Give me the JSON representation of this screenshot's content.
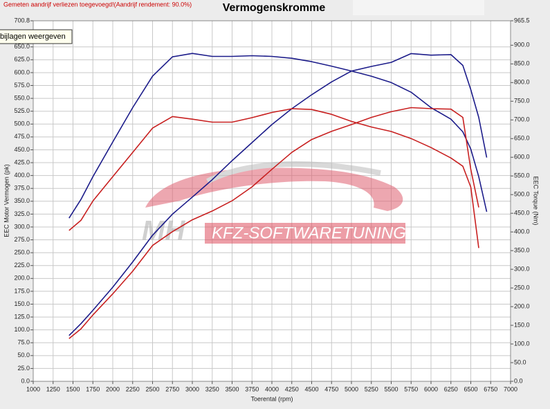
{
  "notice": "Gemeten aandrijf verliezen toegevoegd!(Aandrijf rendement: 90.0%)",
  "tooltip": "bijlagen weergeven",
  "watermark": {
    "logo": "MH",
    "text": "KFZ-SOFTWARETUNING"
  },
  "chart_data": {
    "type": "line",
    "title": "Vermogenskromme",
    "x_label": "Toerental (rpm)",
    "y_label": "EEC Motor Vermogen (pk)",
    "y2_label": "EEC Torque (Nm)",
    "grid": true,
    "xlim": [
      1000,
      7000
    ],
    "xticks": [
      1000,
      1250,
      1500,
      1750,
      2000,
      2250,
      2500,
      2750,
      3000,
      3250,
      3500,
      3750,
      4000,
      4250,
      4500,
      4750,
      5000,
      5250,
      5500,
      5750,
      6000,
      6250,
      6500,
      6750,
      7000
    ],
    "ylim": [
      0,
      700.8
    ],
    "yticks": [
      {
        "value": 0,
        "label": "0.0"
      },
      {
        "value": 25,
        "label": "25.0"
      },
      {
        "value": 50,
        "label": "50.0"
      },
      {
        "value": 75,
        "label": "75.0"
      },
      {
        "value": 100,
        "label": "100.0"
      },
      {
        "value": 125,
        "label": "125.0"
      },
      {
        "value": 150,
        "label": "150.0"
      },
      {
        "value": 175,
        "label": "175.0"
      },
      {
        "value": 200,
        "label": "200.0"
      },
      {
        "value": 225,
        "label": "225.0"
      },
      {
        "value": 250,
        "label": "250.0"
      },
      {
        "value": 275,
        "label": "275.0"
      },
      {
        "value": 300,
        "label": "300.0"
      },
      {
        "value": 325,
        "label": "325.0"
      },
      {
        "value": 350,
        "label": "350.0"
      },
      {
        "value": 375,
        "label": "375.0"
      },
      {
        "value": 400,
        "label": "400.0"
      },
      {
        "value": 425,
        "label": "425.0"
      },
      {
        "value": 450,
        "label": "450.0"
      },
      {
        "value": 475,
        "label": "475.0"
      },
      {
        "value": 500,
        "label": "500.0"
      },
      {
        "value": 525,
        "label": "525.0"
      },
      {
        "value": 550,
        "label": "550.0"
      },
      {
        "value": 575,
        "label": "575.0"
      },
      {
        "value": 600,
        "label": "600.0"
      },
      {
        "value": 625,
        "label": "625.0"
      },
      {
        "value": 650,
        "label": "650.0"
      },
      {
        "value": 700.8,
        "label": "700.8"
      }
    ],
    "y2lim": [
      0,
      965.5
    ],
    "y2ticks": [
      {
        "value": 0,
        "label": "0.0"
      },
      {
        "value": 50,
        "label": "50.0"
      },
      {
        "value": 100,
        "label": "100.0"
      },
      {
        "value": 150,
        "label": "150.0"
      },
      {
        "value": 200,
        "label": "200.0"
      },
      {
        "value": 250,
        "label": "250.0"
      },
      {
        "value": 300,
        "label": "300.0"
      },
      {
        "value": 350,
        "label": "350.0"
      },
      {
        "value": 400,
        "label": "400.0"
      },
      {
        "value": 450,
        "label": "450.0"
      },
      {
        "value": 500,
        "label": "500.0"
      },
      {
        "value": 550,
        "label": "550.0"
      },
      {
        "value": 600,
        "label": "600.0"
      },
      {
        "value": 650,
        "label": "650.0"
      },
      {
        "value": 700,
        "label": "700.0"
      },
      {
        "value": 750,
        "label": "750.0"
      },
      {
        "value": 800,
        "label": "800.0"
      },
      {
        "value": 850,
        "label": "850.0"
      },
      {
        "value": 900,
        "label": "900.0"
      },
      {
        "value": 965.5,
        "label": "965.5"
      }
    ],
    "x": [
      1450,
      1600,
      1750,
      2000,
      2250,
      2500,
      2750,
      3000,
      3250,
      3500,
      3750,
      4000,
      4250,
      4500,
      4750,
      5000,
      5250,
      5500,
      5750,
      6000,
      6250,
      6400,
      6500,
      6600,
      6700
    ],
    "series": [
      {
        "color": "#1c1c8a",
        "axis": "y",
        "values": [
          89,
          112,
          138,
          183,
          232,
          284,
          325,
          358,
          392,
          429,
          464,
          499,
          530,
          557,
          582,
          603,
          612,
          620,
          637,
          634,
          635,
          614,
          567,
          513,
          435
        ]
      },
      {
        "color": "#1c1c8a",
        "axis": "y2",
        "values": [
          437,
          487,
          548,
          641,
          733,
          817,
          869,
          878,
          870,
          870,
          872,
          870,
          865,
          856,
          844,
          831,
          817,
          800,
          774,
          733,
          702,
          668,
          622,
          548,
          454
        ]
      },
      {
        "color": "#c82020",
        "axis": "y",
        "values": [
          83,
          102,
          129,
          170,
          214,
          264,
          291,
          314,
          331,
          351,
          378,
          412,
          445,
          470,
          486,
          499,
          513,
          524,
          532,
          530,
          529,
          513,
          412,
          338,
          null
        ]
      },
      {
        "color": "#c82020",
        "axis": "y2",
        "values": [
          404,
          431,
          483,
          548,
          613,
          678,
          709,
          702,
          694,
          694,
          706,
          720,
          730,
          728,
          715,
          696,
          681,
          669,
          650,
          626,
          598,
          576,
          520,
          357,
          null
        ]
      }
    ]
  }
}
